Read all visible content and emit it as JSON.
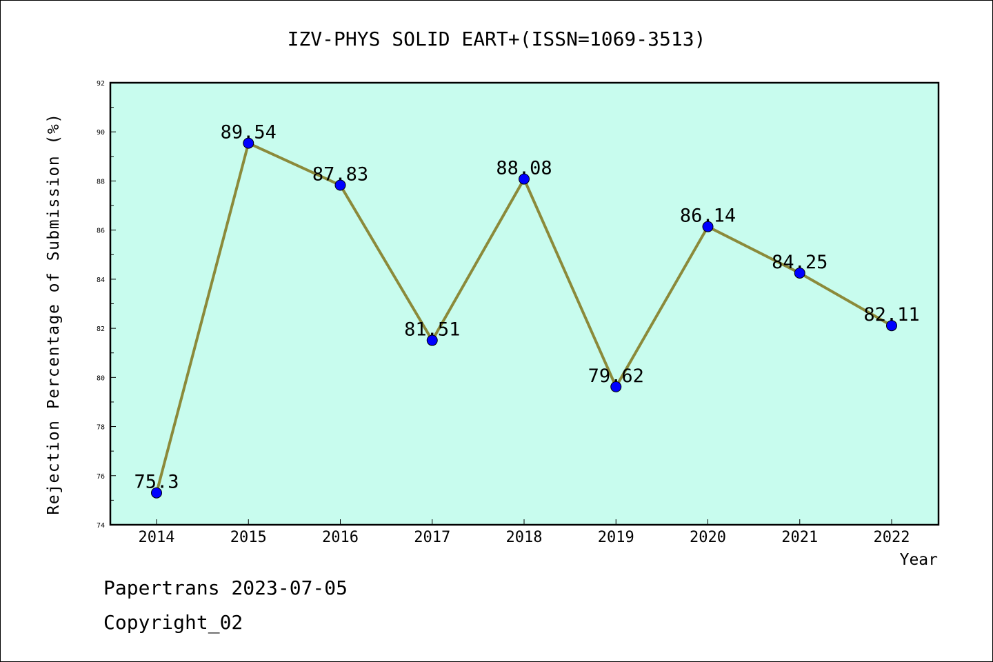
{
  "chart_data": {
    "type": "line",
    "title": "IZV-PHYS SOLID EART+(ISSN=1069-3513)",
    "xlabel": "Year",
    "ylabel": "Rejection Percentage of Submission (%)",
    "categories": [
      "2014",
      "2015",
      "2016",
      "2017",
      "2018",
      "2019",
      "2020",
      "2021",
      "2022"
    ],
    "values": [
      75.3,
      89.54,
      87.83,
      81.51,
      88.08,
      79.62,
      86.14,
      84.25,
      82.11
    ],
    "data_labels": [
      "75.3",
      "89.54",
      "87.83",
      "81.51",
      "88.08",
      "79.62",
      "86.14",
      "84.25",
      "82.11"
    ],
    "ylim": [
      74,
      92
    ],
    "yticks": [
      "74",
      "76",
      "78",
      "80",
      "82",
      "84",
      "86",
      "88",
      "90",
      "92"
    ],
    "grid": false,
    "legend": "none",
    "colors": {
      "plot_background": "#c8fcee",
      "line": "#8b8a3a",
      "marker": "#0000ff"
    }
  },
  "footer": {
    "source": "Papertrans 2023-07-05",
    "copyright": "Copyright_02"
  }
}
